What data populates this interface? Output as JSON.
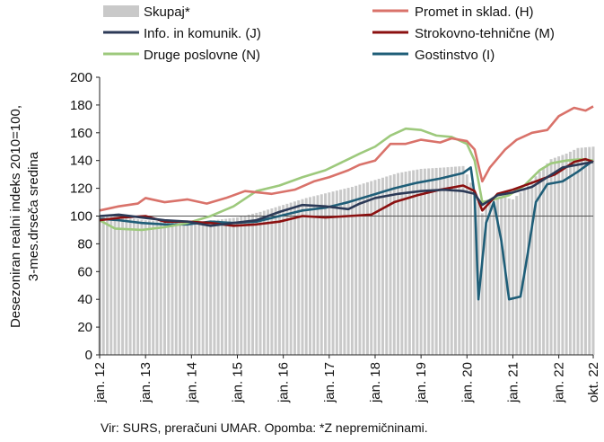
{
  "chart_data": {
    "type": "line",
    "ylabel_line1": "Desezoniran realni indeks 2010=100,",
    "ylabel_line2": "3-mes.drseča sredina",
    "ylim": [
      0,
      200
    ],
    "yticks": [
      0,
      20,
      40,
      60,
      80,
      100,
      120,
      140,
      160,
      180,
      200
    ],
    "xticks": [
      "jan. 12",
      "jan. 13",
      "jan. 14",
      "jan. 15",
      "jan. 16",
      "jan. 17",
      "jan. 18",
      "jan. 19",
      "jan. 20",
      "jan. 21",
      "jan. 22",
      "okt. 22"
    ],
    "x_start": "2012-01",
    "x_end": "2022-10",
    "reference_line": 100,
    "grid": false,
    "legend_position": "top",
    "source_note": "Vir: SURS, preračuni UMAR. Opomba: *Z nepremičninami.",
    "series": [
      {
        "name": "Skupaj*",
        "kind": "bar",
        "color": "#c9c9c9",
        "points": [
          [
            "2012-01",
            100
          ],
          [
            "2012-07",
            99
          ],
          [
            "2013-01",
            97
          ],
          [
            "2013-07",
            96
          ],
          [
            "2014-01",
            95
          ],
          [
            "2014-07",
            97
          ],
          [
            "2015-01",
            99
          ],
          [
            "2015-07",
            103
          ],
          [
            "2016-01",
            108
          ],
          [
            "2016-07",
            113
          ],
          [
            "2017-01",
            117
          ],
          [
            "2017-07",
            121
          ],
          [
            "2018-01",
            126
          ],
          [
            "2018-07",
            131
          ],
          [
            "2019-01",
            134
          ],
          [
            "2019-07",
            135
          ],
          [
            "2019-12",
            136
          ],
          [
            "2020-03",
            118
          ],
          [
            "2020-05",
            102
          ],
          [
            "2020-07",
            112
          ],
          [
            "2020-10",
            114
          ],
          [
            "2021-01",
            112
          ],
          [
            "2021-05",
            122
          ],
          [
            "2021-08",
            132
          ],
          [
            "2021-11",
            141
          ],
          [
            "2022-03",
            145
          ],
          [
            "2022-06",
            149
          ],
          [
            "2022-10",
            150
          ]
        ]
      },
      {
        "name": "Promet in sklad. (H)",
        "kind": "line",
        "color": "#d9726a",
        "points": [
          [
            "2012-01",
            104
          ],
          [
            "2012-06",
            107
          ],
          [
            "2012-11",
            109
          ],
          [
            "2013-01",
            113
          ],
          [
            "2013-06",
            110
          ],
          [
            "2013-12",
            112
          ],
          [
            "2014-05",
            109
          ],
          [
            "2014-10",
            113
          ],
          [
            "2015-03",
            118
          ],
          [
            "2015-10",
            116
          ],
          [
            "2016-04",
            119
          ],
          [
            "2016-09",
            125
          ],
          [
            "2017-01",
            128
          ],
          [
            "2017-06",
            133
          ],
          [
            "2017-09",
            137
          ],
          [
            "2018-01",
            140
          ],
          [
            "2018-05",
            152
          ],
          [
            "2018-09",
            152
          ],
          [
            "2019-01",
            155
          ],
          [
            "2019-06",
            153
          ],
          [
            "2019-09",
            156
          ],
          [
            "2020-01",
            154
          ],
          [
            "2020-03",
            148
          ],
          [
            "2020-05",
            125
          ],
          [
            "2020-07",
            135
          ],
          [
            "2020-11",
            148
          ],
          [
            "2021-02",
            155
          ],
          [
            "2021-06",
            160
          ],
          [
            "2021-10",
            162
          ],
          [
            "2022-01",
            172
          ],
          [
            "2022-05",
            178
          ],
          [
            "2022-08",
            176
          ],
          [
            "2022-10",
            179
          ]
        ]
      },
      {
        "name": "Info. in komunik. (J)",
        "kind": "line",
        "color": "#2c3a57",
        "points": [
          [
            "2012-01",
            100
          ],
          [
            "2012-06",
            101
          ],
          [
            "2012-12",
            99
          ],
          [
            "2013-06",
            97
          ],
          [
            "2013-12",
            96
          ],
          [
            "2014-06",
            93
          ],
          [
            "2014-12",
            95
          ],
          [
            "2015-06",
            97
          ],
          [
            "2015-12",
            103
          ],
          [
            "2016-06",
            108
          ],
          [
            "2016-12",
            107
          ],
          [
            "2017-06",
            105
          ],
          [
            "2017-09",
            109
          ],
          [
            "2018-01",
            113
          ],
          [
            "2018-07",
            116
          ],
          [
            "2019-01",
            118
          ],
          [
            "2019-07",
            119
          ],
          [
            "2019-12",
            118
          ],
          [
            "2020-03",
            116
          ],
          [
            "2020-05",
            108
          ],
          [
            "2020-09",
            115
          ],
          [
            "2021-01",
            117
          ],
          [
            "2021-06",
            121
          ],
          [
            "2021-10",
            128
          ],
          [
            "2022-02",
            135
          ],
          [
            "2022-06",
            137
          ],
          [
            "2022-10",
            139
          ]
        ]
      },
      {
        "name": "Strokovno-tehnične (M)",
        "kind": "line",
        "color": "#8b1010",
        "points": [
          [
            "2012-01",
            97
          ],
          [
            "2012-07",
            99
          ],
          [
            "2013-01",
            100
          ],
          [
            "2013-06",
            96
          ],
          [
            "2013-12",
            96
          ],
          [
            "2014-06",
            95
          ],
          [
            "2014-12",
            93
          ],
          [
            "2015-06",
            94
          ],
          [
            "2015-12",
            96
          ],
          [
            "2016-06",
            100
          ],
          [
            "2016-12",
            99
          ],
          [
            "2017-06",
            100
          ],
          [
            "2017-12",
            101
          ],
          [
            "2018-06",
            110
          ],
          [
            "2018-12",
            115
          ],
          [
            "2019-06",
            119
          ],
          [
            "2019-12",
            122
          ],
          [
            "2020-03",
            118
          ],
          [
            "2020-05",
            104
          ],
          [
            "2020-09",
            116
          ],
          [
            "2021-01",
            119
          ],
          [
            "2021-06",
            124
          ],
          [
            "2021-12",
            130
          ],
          [
            "2022-05",
            139
          ],
          [
            "2022-08",
            141
          ],
          [
            "2022-10",
            139
          ]
        ]
      },
      {
        "name": "Druge poslovne (N)",
        "kind": "line",
        "color": "#9dc97c",
        "points": [
          [
            "2012-01",
            97
          ],
          [
            "2012-05",
            91
          ],
          [
            "2012-12",
            90
          ],
          [
            "2013-06",
            92
          ],
          [
            "2013-12",
            95
          ],
          [
            "2014-06",
            100
          ],
          [
            "2014-12",
            107
          ],
          [
            "2015-06",
            118
          ],
          [
            "2015-12",
            122
          ],
          [
            "2016-06",
            128
          ],
          [
            "2016-12",
            133
          ],
          [
            "2017-06",
            141
          ],
          [
            "2017-09",
            145
          ],
          [
            "2018-01",
            150
          ],
          [
            "2018-05",
            158
          ],
          [
            "2018-09",
            163
          ],
          [
            "2019-01",
            162
          ],
          [
            "2019-05",
            158
          ],
          [
            "2019-09",
            157
          ],
          [
            "2020-01",
            152
          ],
          [
            "2020-03",
            140
          ],
          [
            "2020-05",
            110
          ],
          [
            "2020-08",
            112
          ],
          [
            "2020-12",
            115
          ],
          [
            "2021-04",
            122
          ],
          [
            "2021-08",
            133
          ],
          [
            "2021-11",
            138
          ],
          [
            "2022-03",
            140
          ],
          [
            "2022-07",
            141
          ],
          [
            "2022-10",
            140
          ]
        ]
      },
      {
        "name": "Gostinstvo (I)",
        "kind": "line",
        "color": "#1f5e78",
        "points": [
          [
            "2012-01",
            98
          ],
          [
            "2012-06",
            97
          ],
          [
            "2012-12",
            95
          ],
          [
            "2013-06",
            94
          ],
          [
            "2013-12",
            94
          ],
          [
            "2014-06",
            96
          ],
          [
            "2014-12",
            95
          ],
          [
            "2015-06",
            96
          ],
          [
            "2015-12",
            100
          ],
          [
            "2016-06",
            104
          ],
          [
            "2016-12",
            106
          ],
          [
            "2017-06",
            110
          ],
          [
            "2017-12",
            115
          ],
          [
            "2018-06",
            120
          ],
          [
            "2018-12",
            124
          ],
          [
            "2019-06",
            127
          ],
          [
            "2019-12",
            131
          ],
          [
            "2020-02",
            135
          ],
          [
            "2020-03",
            115
          ],
          [
            "2020-04",
            40
          ],
          [
            "2020-06",
            95
          ],
          [
            "2020-08",
            110
          ],
          [
            "2020-10",
            82
          ],
          [
            "2020-12",
            40
          ],
          [
            "2021-03",
            42
          ],
          [
            "2021-05",
            75
          ],
          [
            "2021-07",
            110
          ],
          [
            "2021-10",
            123
          ],
          [
            "2022-02",
            125
          ],
          [
            "2022-06",
            132
          ],
          [
            "2022-10",
            140
          ]
        ]
      }
    ]
  }
}
